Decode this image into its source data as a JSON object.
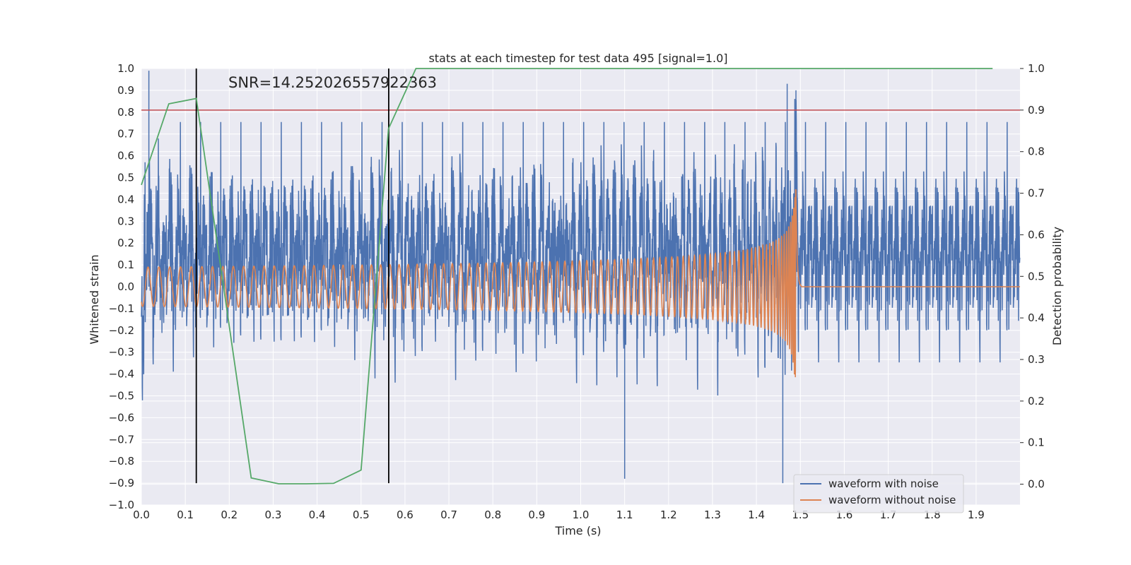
{
  "chart_data": {
    "type": "line",
    "title": "stats at each timestep for test data 495 [signal=1.0]",
    "xlabel": "Time (s)",
    "ylabel_left": "Whitened strain",
    "ylabel_right": "Detection probability",
    "xlim": [
      0.0,
      2.0
    ],
    "ylim_left": [
      -1.0,
      1.0
    ],
    "ylim_right": [
      -0.05,
      1.0
    ],
    "x_ticks": [
      "0.0",
      "0.1",
      "0.2",
      "0.3",
      "0.4",
      "0.5",
      "0.6",
      "0.7",
      "0.8",
      "0.9",
      "1.0",
      "1.1",
      "1.2",
      "1.3",
      "1.4",
      "1.5",
      "1.6",
      "1.7",
      "1.8",
      "1.9"
    ],
    "y_left_ticks": [
      "−1.0",
      "−0.9",
      "−0.8",
      "−0.7",
      "−0.6",
      "−0.5",
      "−0.4",
      "−0.3",
      "−0.2",
      "−0.1",
      "0.0",
      "0.1",
      "0.2",
      "0.3",
      "0.4",
      "0.5",
      "0.6",
      "0.7",
      "0.8",
      "0.9",
      "1.0"
    ],
    "y_right_ticks": [
      "0.0",
      "0.1",
      "0.2",
      "0.3",
      "0.4",
      "0.5",
      "0.6",
      "0.7",
      "0.8",
      "0.9",
      "1.0"
    ],
    "annotation": "SNR=14.252026557922363",
    "legend": {
      "position": "lower-right",
      "entries": [
        "waveform with noise",
        "waveform without noise"
      ]
    },
    "colors": {
      "noisy": "#4c72b0",
      "clean": "#dd8452",
      "probability": "#55a868",
      "threshold": "#c44e52",
      "markers": "#000000",
      "background": "#eaeaf2",
      "grid": "#ffffff"
    },
    "threshold_right": 0.9,
    "vertical_markers_x": [
      0.125,
      0.563
    ],
    "vertical_markers_y_range": [
      -0.9,
      1.0
    ],
    "series": [
      {
        "name": "detection probability",
        "axis": "right",
        "x": [
          0.0,
          0.0625,
          0.125,
          0.25,
          0.3125,
          0.375,
          0.4375,
          0.5,
          0.5625,
          0.625,
          1.9375
        ],
        "y": [
          0.72,
          0.915,
          0.928,
          0.015,
          0.001,
          0.001,
          0.002,
          0.034,
          0.855,
          1.0,
          1.0
        ]
      }
    ],
    "waveform_with_noise": {
      "description_values": "noisy strain samples over 0.0–2.0 s",
      "sample_rate_hz": 2048,
      "typical_amplitude": 0.3,
      "peak_values": [
        {
          "x": 0.017,
          "y": 0.99
        },
        {
          "x": 1.47,
          "y": 0.93
        },
        {
          "x": 1.49,
          "y": 0.9
        },
        {
          "x": 1.46,
          "y": -0.9
        },
        {
          "x": 1.1,
          "y": -0.88
        }
      ]
    },
    "waveform_without_noise": {
      "description_values": "chirp signal, merger near 1.49 s",
      "start_amplitude": 0.09,
      "start_frequency_hz": 40,
      "merger_time_s": 1.49,
      "merger_amplitude": 0.45,
      "post_merger_value": 0.0
    }
  }
}
